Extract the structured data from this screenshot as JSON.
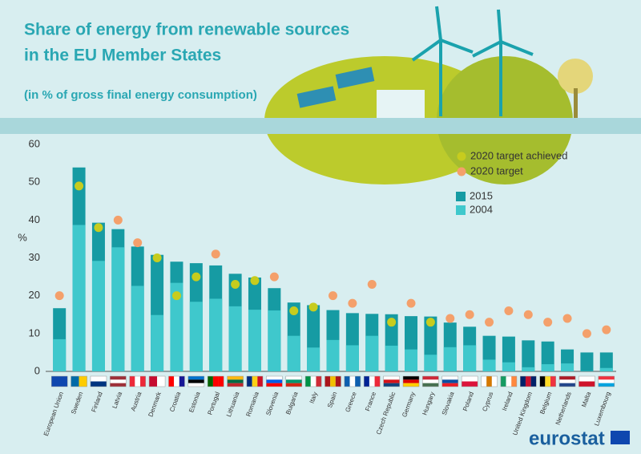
{
  "chart_data": {
    "type": "bar",
    "title": "Share of energy from renewable sources",
    "title_line2": "in the EU Member States",
    "subtitle": "(in % of gross final energy consumption)",
    "y_label": "%",
    "source": "eurostat",
    "categories": [
      "European Union",
      "Sweden",
      "Finland",
      "Latvia",
      "Austria",
      "Denmark",
      "Croatia",
      "Estonia",
      "Portugal",
      "Lithuania",
      "Romania",
      "Slovenia",
      "Bulgaria",
      "Italy",
      "Spain",
      "Greece",
      "France",
      "Czech Republic",
      "Germany",
      "Hungary",
      "Slovakia",
      "Poland",
      "Cyprus",
      "Ireland",
      "United Kingdom",
      "Belgium",
      "Netherlands",
      "Malta",
      "Luxembourg"
    ],
    "series": [
      {
        "name": "2015",
        "color": "#169ba3",
        "values": [
          16.7,
          53.9,
          39.3,
          37.6,
          33.0,
          30.8,
          29.0,
          28.6,
          28.0,
          25.8,
          24.8,
          22.0,
          18.2,
          17.5,
          16.2,
          15.4,
          15.2,
          15.1,
          14.6,
          14.5,
          12.9,
          11.8,
          9.4,
          9.2,
          8.2,
          7.9,
          5.8,
          5.0,
          5.0
        ]
      },
      {
        "name": "2004",
        "color": "#3fc8cc",
        "values": [
          8.5,
          38.7,
          29.2,
          32.8,
          22.6,
          14.9,
          23.4,
          18.4,
          19.2,
          17.2,
          16.3,
          16.1,
          9.4,
          6.3,
          8.3,
          6.9,
          9.4,
          6.8,
          5.8,
          4.4,
          6.4,
          6.9,
          3.1,
          2.4,
          1.1,
          1.9,
          2.1,
          0.1,
          0.9
        ]
      },
      {
        "name": "2020 target achieved",
        "color": "#c7cc1e",
        "marker": "circle",
        "values": [
          null,
          49,
          38,
          null,
          null,
          30,
          20,
          25,
          null,
          23,
          24,
          null,
          16,
          17,
          null,
          null,
          null,
          13,
          null,
          13,
          null,
          null,
          null,
          null,
          null,
          null,
          null,
          null,
          null
        ]
      },
      {
        "name": "2020 target",
        "color": "#f4a06b",
        "marker": "circle",
        "values": [
          20,
          null,
          null,
          40,
          34,
          null,
          null,
          null,
          31,
          null,
          null,
          25,
          null,
          null,
          20,
          18,
          23,
          null,
          18,
          null,
          14,
          15,
          13,
          16,
          15,
          13,
          14,
          10,
          11
        ]
      }
    ],
    "ylim": [
      0,
      60
    ],
    "yticks": [
      0,
      10,
      20,
      30,
      40,
      50,
      60
    ],
    "grid": false
  }
}
